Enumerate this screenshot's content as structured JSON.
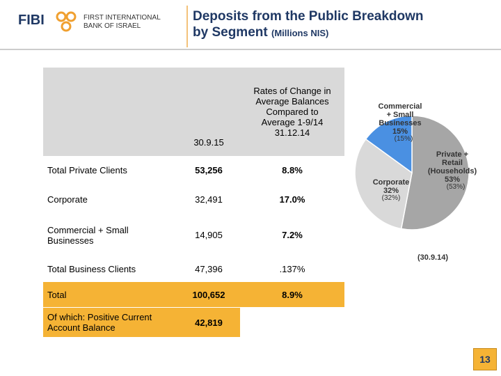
{
  "header": {
    "logo": "FIBI",
    "bank_line1": "FIRST INTERNATIONAL",
    "bank_line2": "BANK OF ISRAEL",
    "title": "Deposits from the Public Breakdown\nby Segment",
    "subtitle": "(Millions NIS)"
  },
  "table": {
    "columns": [
      "",
      "30.9.15",
      "Rates of Change in\nAverage Balances\nCompared to\nAverage 1-9/14\n31.12.14"
    ],
    "rows": [
      [
        "Total Private Clients",
        "53,256",
        "8.8%"
      ],
      [
        "Corporate",
        "32,491",
        "17.0%"
      ],
      [
        "Commercial + Small\nBusinesses",
        "14,905",
        "7.2%"
      ],
      [
        "Total Business Clients",
        "47,396",
        ".137%"
      ],
      [
        "Total",
        "100,652",
        "8.9%"
      ],
      [
        "Of which: Positive Current\nAccount Balance",
        "42,819",
        ""
      ]
    ]
  },
  "chart_data": {
    "type": "pie",
    "categories": [
      "Private +\nRetail\n(Households)",
      "Corporate",
      "Commercial\n+ Small\nBusinesses"
    ],
    "values": [
      53,
      32,
      15
    ],
    "value_labels": [
      "53%",
      "32%",
      "15%"
    ],
    "comparison_labels": [
      "(53%)",
      "(32%)",
      "(15%)"
    ],
    "colors": [
      "#a6a6a6",
      "#d9d9d9",
      "#4a90e2"
    ],
    "caption": "(30.9.14)"
  },
  "page_number": "13"
}
